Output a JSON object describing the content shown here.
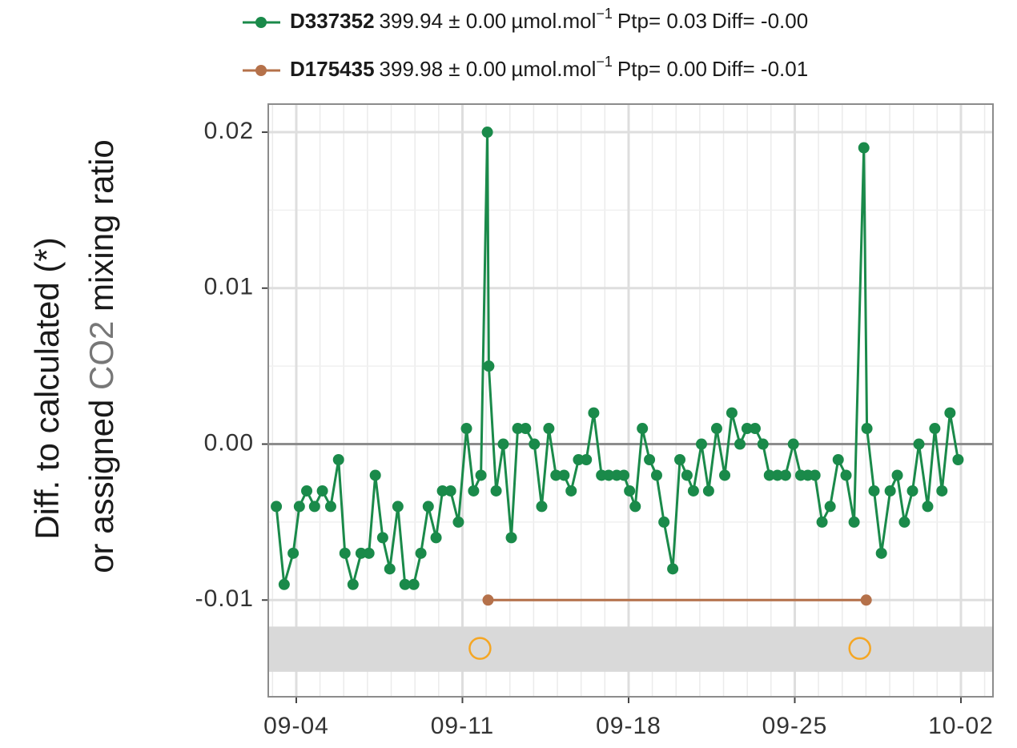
{
  "chart_data": {
    "type": "line",
    "ylabel_line1": "Diff. to calculated (*)",
    "ylabel_pre": "or assigned",
    "ylabel_species": "CO2",
    "ylabel_post": "mixing ratio",
    "xlim": [
      2.82,
      33.35
    ],
    "ylim": [
      -0.0162,
      0.0218
    ],
    "xticks": [
      {
        "value": 4,
        "label": "09-04"
      },
      {
        "value": 11,
        "label": "09-11"
      },
      {
        "value": 18,
        "label": "09-18"
      },
      {
        "value": 25,
        "label": "09-25"
      },
      {
        "value": 32,
        "label": "10-02"
      }
    ],
    "yticks": [
      -0.01,
      {
        "value": 0,
        "label": "0.00"
      },
      0.01,
      0.02
    ],
    "grid": true,
    "hline": 0,
    "band": [
      -0.0146,
      -0.0117
    ],
    "band_color": "#d9d9d9",
    "markers": {
      "color": "#f5a623",
      "x": [
        11.74,
        27.74
      ],
      "values": [
        -0.0131,
        -0.0131
      ]
    },
    "series": [
      {
        "name": "D337352",
        "color": "#1a8a4a",
        "stats": "399.94 ± 0.00",
        "unit": "µmol.mol",
        "unit_exp": "−1",
        "ptp": "Ptp= 0.03",
        "diff": "Diff= -0.00",
        "x": [
          3.16,
          3.49,
          3.87,
          4.13,
          4.44,
          4.77,
          5.1,
          5.45,
          5.78,
          6.05,
          6.39,
          6.73,
          7.06,
          7.33,
          7.64,
          7.94,
          8.28,
          8.58,
          8.95,
          9.25,
          9.56,
          9.89,
          10.16,
          10.5,
          10.83,
          11.17,
          11.47,
          11.78,
          12.05,
          12.11,
          12.42,
          12.72,
          13.06,
          13.33,
          13.66,
          14.03,
          14.34,
          14.64,
          14.94,
          15.28,
          15.58,
          15.89,
          16.22,
          16.53,
          16.86,
          17.16,
          17.5,
          17.8,
          18.04,
          18.28,
          18.58,
          18.88,
          19.18,
          19.49,
          19.86,
          20.16,
          20.46,
          20.73,
          21.07,
          21.37,
          21.71,
          22.05,
          22.35,
          22.69,
          22.99,
          23.33,
          23.66,
          23.93,
          24.27,
          24.61,
          24.94,
          25.25,
          25.55,
          25.85,
          26.15,
          26.49,
          26.83,
          27.16,
          27.5,
          27.91,
          28.04,
          28.34,
          28.65,
          29.02,
          29.32,
          29.62,
          29.96,
          30.23,
          30.6,
          30.9,
          31.2,
          31.54,
          31.88
        ],
        "values": [
          -0.004,
          -0.009,
          -0.007,
          -0.004,
          -0.003,
          -0.004,
          -0.003,
          -0.004,
          -0.001,
          -0.007,
          -0.009,
          -0.007,
          -0.007,
          -0.002,
          -0.006,
          -0.008,
          -0.004,
          -0.009,
          -0.009,
          -0.007,
          -0.004,
          -0.006,
          -0.003,
          -0.003,
          -0.005,
          0.001,
          -0.003,
          -0.002,
          0.02,
          0.005,
          -0.003,
          0.0,
          -0.006,
          0.001,
          0.001,
          0.0,
          -0.004,
          0.001,
          -0.002,
          -0.002,
          -0.003,
          -0.001,
          -0.001,
          0.002,
          -0.002,
          -0.002,
          -0.002,
          -0.002,
          -0.003,
          -0.004,
          0.001,
          -0.001,
          -0.002,
          -0.005,
          -0.008,
          -0.001,
          -0.002,
          -0.003,
          0.0,
          -0.003,
          0.001,
          -0.002,
          0.002,
          0.0,
          0.001,
          0.001,
          0.0,
          -0.002,
          -0.002,
          -0.002,
          0.0,
          -0.002,
          -0.002,
          -0.002,
          -0.005,
          -0.004,
          -0.001,
          -0.002,
          -0.005,
          0.019,
          0.001,
          -0.003,
          -0.007,
          -0.003,
          -0.002,
          -0.005,
          -0.003,
          0.0,
          -0.004,
          0.001,
          -0.003,
          0.002,
          -0.001
        ]
      },
      {
        "name": "D175435",
        "color": "#b5714a",
        "stats": "399.98 ± 0.00",
        "unit": "µmol.mol",
        "unit_exp": "−1",
        "ptp": "Ptp= 0.00",
        "diff": "Diff= -0.01",
        "x": [
          12.08,
          28.01
        ],
        "values": [
          -0.01,
          -0.01
        ]
      }
    ]
  }
}
